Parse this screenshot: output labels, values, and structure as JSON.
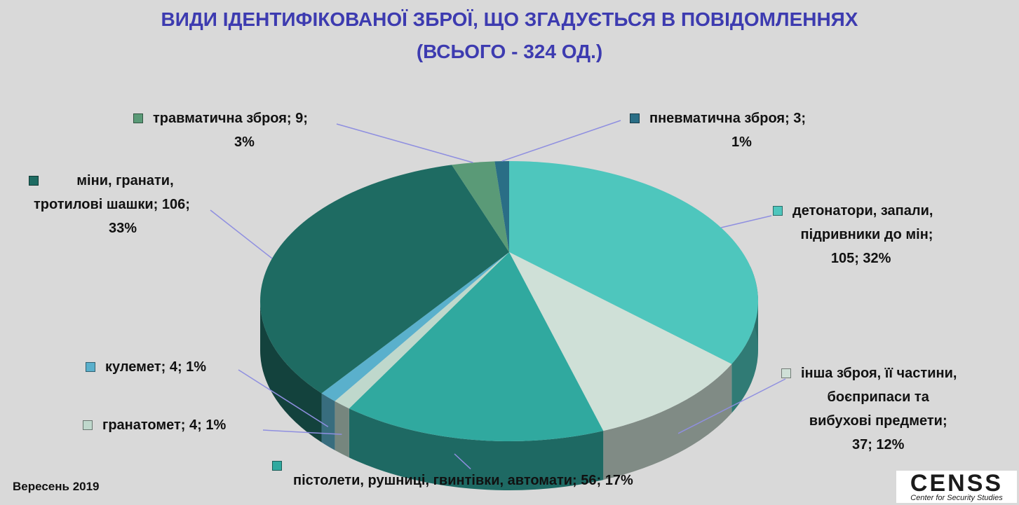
{
  "title": {
    "line1": "ВИДИ ІДЕНТИФІКОВАНОЇ ЗБРОЇ, ЩО ЗГАДУЄТЬСЯ В ПОВІДОМЛЕННЯХ",
    "line2": "(ВСЬОГО - 324 ОД.)"
  },
  "footer": {
    "date": "Вересень 2019",
    "logo_text": "CENSS",
    "logo_subtitle": "Center for Security Studies"
  },
  "chart_data": {
    "type": "pie",
    "total": 324,
    "start_angle_deg": 0,
    "direction": "clockwise",
    "slices": [
      {
        "name": "детонатори, запали, підривники до мін",
        "value": 105,
        "percent": 32,
        "color": "#4ec6bd",
        "label_lines": [
          "детонатори, запали,",
          "підривники до мін;",
          "105; 32%"
        ]
      },
      {
        "name": "інша зброя, її частини, боєприпаси та вибухові предмети",
        "value": 37,
        "percent": 12,
        "color": "#cfe0d7",
        "label_lines": [
          "інша зброя, її частини,",
          "боєприпаси та",
          "вибухові предмети;",
          "37; 12%"
        ]
      },
      {
        "name": "пістолети, рушниці, гвинтівки, автомати",
        "value": 56,
        "percent": 17,
        "color": "#30a99f",
        "label_lines": [
          "пістолети, рушниці, гвинтівки, автомати; 56; 17%"
        ]
      },
      {
        "name": "гранатомет",
        "value": 4,
        "percent": 1,
        "color": "#bfd8cc",
        "label_lines": [
          "гранатомет; 4; 1%"
        ]
      },
      {
        "name": "кулемет",
        "value": 4,
        "percent": 1,
        "color": "#5ab0cc",
        "label_lines": [
          "кулемет; 4; 1%"
        ]
      },
      {
        "name": "міни, гранати, тротилові шашки",
        "value": 106,
        "percent": 33,
        "color": "#1e6b62",
        "label_lines": [
          "міни, гранати,",
          "тротилові шашки; 106;",
          "33%"
        ]
      },
      {
        "name": "травматична зброя",
        "value": 9,
        "percent": 3,
        "color": "#5a9a77",
        "label_lines": [
          "травматична зброя; 9;",
          "3%"
        ]
      },
      {
        "name": "пневматична зброя",
        "value": 3,
        "percent": 1,
        "color": "#2a6e86",
        "label_lines": [
          "пневматична зброя; 3;",
          "1%"
        ]
      }
    ]
  }
}
